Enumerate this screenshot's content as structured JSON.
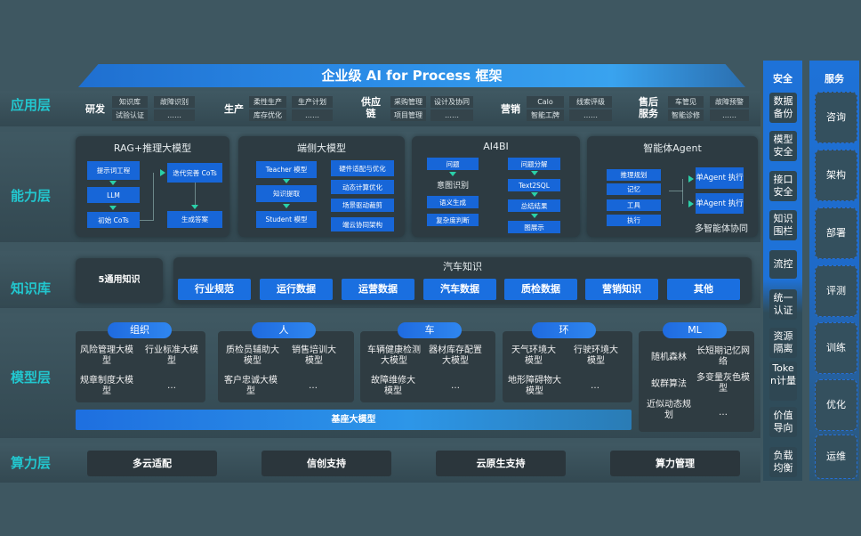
{
  "title": "企业级 AI for Process 框架",
  "layers": {
    "app": "应用层",
    "capability": "能力层",
    "knowledge": "知识库",
    "model": "模型层",
    "compute": "算力层"
  },
  "app_groups": [
    {
      "name": "研发",
      "items": [
        "知识库",
        "故障识别",
        "试验认证",
        "……"
      ]
    },
    {
      "name": "生产",
      "items": [
        "柔性生产",
        "生产计划",
        "库存优化",
        "……"
      ]
    },
    {
      "name": "供应链",
      "items": [
        "采购管理",
        "设计及协同",
        "项目管理",
        "……"
      ]
    },
    {
      "name": "营销",
      "items": [
        "Calo",
        "线索评级",
        "智能工牌",
        "……"
      ]
    },
    {
      "name": "售后服务",
      "items": [
        "车管见",
        "故障预警",
        "智能诊修",
        "……"
      ]
    }
  ],
  "capability": {
    "rag": {
      "title": "RAG+推理大模型",
      "items": [
        "提示词工程",
        "LLM",
        "初始 CoTs",
        "迭代完善 CoTs",
        "生成答案"
      ]
    },
    "edge": {
      "title": "端侧大模型",
      "items": [
        "Teacher 模型",
        "知识提取",
        "Student 模型",
        "硬件适配与优化",
        "动态计算优化",
        "场景驱动裁剪",
        "端云协同架构"
      ]
    },
    "ai4bi": {
      "title": "AI4BI",
      "items": [
        "问题",
        "意图识别",
        "语义生成",
        "复杂度判断",
        "问题分解",
        "Text2SQL",
        "总结结果",
        "图展示"
      ]
    },
    "agent": {
      "title": "智能体Agent",
      "items": [
        "推理规划",
        "记忆",
        "工具",
        "执行",
        "单Agent 执行",
        "单Agent 执行",
        "多智能体协同"
      ]
    }
  },
  "knowledge": {
    "general": "5通用知识",
    "auto_title": "汽车知识",
    "items": [
      "行业规范",
      "运行数据",
      "运营数据",
      "汽车数据",
      "质检数据",
      "营销知识",
      "其他"
    ]
  },
  "models": [
    {
      "tag": "组织",
      "items": [
        "风险管理大模型",
        "行业标准大模型",
        "规章制度大模型",
        "…"
      ]
    },
    {
      "tag": "人",
      "items": [
        "质检员辅助大模型",
        "销售培训大模型",
        "客户忠诚大模型",
        "…"
      ]
    },
    {
      "tag": "车",
      "items": [
        "车辆健康检测大模型",
        "器材库存配置大模型",
        "故障维修大模型",
        "…"
      ]
    },
    {
      "tag": "环",
      "items": [
        "天气环境大模型",
        "行驶环境大模型",
        "地形障碍物大模型",
        "…"
      ]
    },
    {
      "tag": "ML",
      "items": [
        "随机森林",
        "长短期记忆网络",
        "蚁群算法",
        "多变量灰色模型",
        "近似动态规划",
        "…"
      ]
    }
  ],
  "base_model": "基座大模型",
  "compute": [
    "多云适配",
    "信创支持",
    "云原生支持",
    "算力管理"
  ],
  "security": {
    "title": "安全",
    "items": [
      "数据备份",
      "模型安全",
      "接口安全",
      "知识围栏",
      "流控",
      "统一认证",
      "资源隔离",
      "Token计量",
      "价值导向",
      "负载均衡"
    ]
  },
  "services": {
    "title": "服务",
    "items": [
      "咨询",
      "架构",
      "部署",
      "评测",
      "训练",
      "优化",
      "运维"
    ]
  },
  "colors": {
    "background": "#3e5761",
    "accent": "#1a6fe0",
    "layer_label": "#22c7cf"
  }
}
